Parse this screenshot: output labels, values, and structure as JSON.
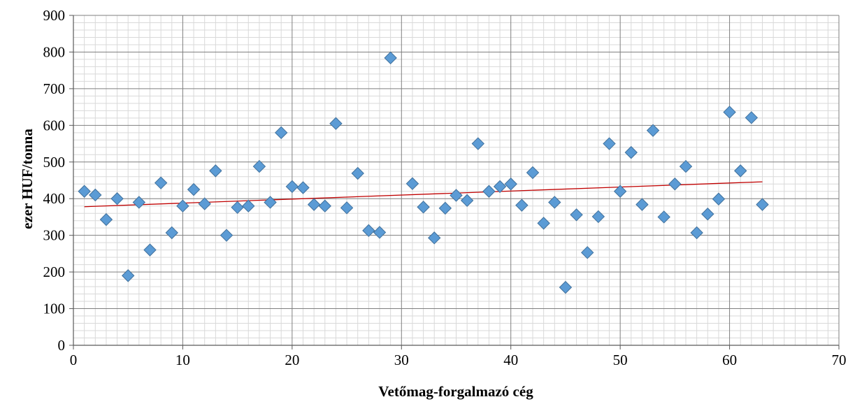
{
  "chart_data": {
    "type": "scatter",
    "title": "",
    "xlabel": "Vetőmag-forgalmazó cég",
    "ylabel": "ezer HUF/tonna",
    "xlim": [
      0,
      70
    ],
    "ylim": [
      0,
      900
    ],
    "x_ticks": [
      0,
      10,
      20,
      30,
      40,
      50,
      60,
      70
    ],
    "y_ticks": [
      0,
      100,
      200,
      300,
      400,
      500,
      600,
      700,
      800,
      900
    ],
    "grid": true,
    "marker": "diamond",
    "marker_color": "#5B9BD5",
    "marker_edge_color": "#41719C",
    "trendline": {
      "type": "linear",
      "color": "#C00000",
      "x": [
        1,
        63
      ],
      "y": [
        378,
        446
      ]
    },
    "series": [
      {
        "x": [
          1,
          2,
          3,
          4,
          5,
          6,
          7,
          8,
          9,
          10,
          11,
          12,
          13,
          14,
          15,
          16,
          17,
          18,
          19,
          20,
          21,
          22,
          23,
          24,
          25,
          26,
          27,
          28,
          29,
          31,
          32,
          33,
          34,
          35,
          36,
          37,
          38,
          39,
          40,
          41,
          42,
          43,
          44,
          45,
          46,
          47,
          48,
          49,
          50,
          51,
          52,
          53,
          54,
          55,
          56,
          57,
          58,
          59,
          60,
          61,
          62,
          63
        ],
        "y": [
          420,
          410,
          343,
          400,
          190,
          390,
          260,
          443,
          307,
          380,
          425,
          386,
          476,
          300,
          376,
          380,
          488,
          390,
          580,
          433,
          430,
          384,
          380,
          605,
          375,
          469,
          313,
          308,
          784,
          441,
          377,
          293,
          374,
          409,
          395,
          550,
          420,
          433,
          440,
          382,
          471,
          333,
          390,
          158,
          356,
          253,
          351,
          550,
          420,
          526,
          384,
          586,
          350,
          440,
          488,
          307,
          358,
          399,
          636,
          476,
          621,
          384
        ]
      }
    ]
  }
}
